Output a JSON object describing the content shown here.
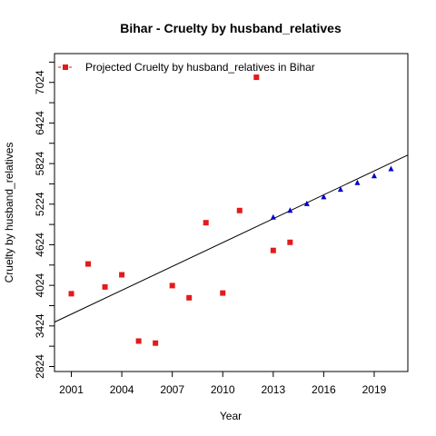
{
  "chart_data": {
    "type": "scatter",
    "title": "Bihar  -  Cruelty by husband_relatives",
    "xlabel": "Year",
    "ylabel": "Cruelty by husband_relatives",
    "xlim": [
      2000,
      2021
    ],
    "ylim": [
      2750,
      7450
    ],
    "x_ticks": [
      2001,
      2004,
      2007,
      2010,
      2013,
      2016,
      2019
    ],
    "y_ticks": [
      2824,
      3424,
      4024,
      4624,
      5224,
      5824,
      6424,
      7024
    ],
    "legend": {
      "label": "Projected  Cruelty by husband_relatives  in  Bihar",
      "placement": "top-left"
    },
    "series": [
      {
        "marker": "square",
        "color": "#e31a1c",
        "points": [
          {
            "x": 2001,
            "y": 3900
          },
          {
            "x": 2002,
            "y": 4340
          },
          {
            "x": 2003,
            "y": 4000
          },
          {
            "x": 2004,
            "y": 4180
          },
          {
            "x": 2005,
            "y": 3200
          },
          {
            "x": 2006,
            "y": 3170
          },
          {
            "x": 2007,
            "y": 4020
          },
          {
            "x": 2008,
            "y": 3840
          },
          {
            "x": 2009,
            "y": 4950
          },
          {
            "x": 2010,
            "y": 3910
          },
          {
            "x": 2011,
            "y": 5130
          },
          {
            "x": 2012,
            "y": 7100
          },
          {
            "x": 2013,
            "y": 4540
          },
          {
            "x": 2014,
            "y": 4660
          }
        ]
      },
      {
        "marker": "triangle",
        "color": "#0000cc",
        "points": [
          {
            "x": 2013,
            "y": 5030
          },
          {
            "x": 2014,
            "y": 5130
          },
          {
            "x": 2015,
            "y": 5230
          },
          {
            "x": 2016,
            "y": 5330
          },
          {
            "x": 2017,
            "y": 5440
          },
          {
            "x": 2018,
            "y": 5540
          },
          {
            "x": 2019,
            "y": 5640
          },
          {
            "x": 2020,
            "y": 5745
          }
        ]
      }
    ],
    "trend_line": {
      "color": "#000000",
      "points": [
        {
          "x": 2000,
          "y": 3480
        },
        {
          "x": 2021,
          "y": 5950
        }
      ]
    }
  }
}
